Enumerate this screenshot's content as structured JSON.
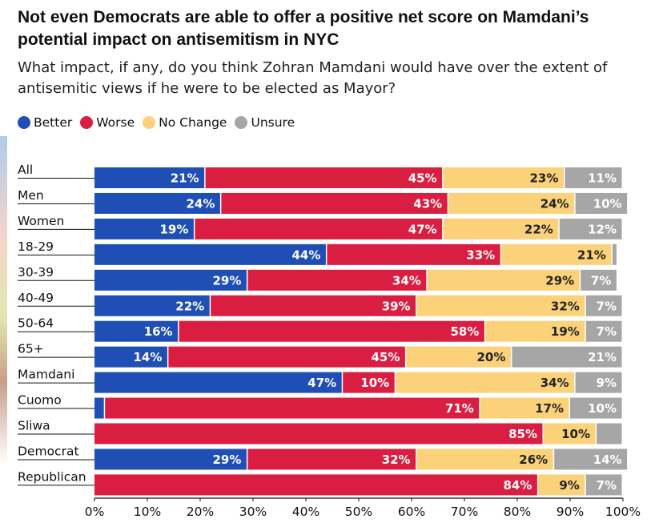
{
  "title": "Not even Democrats are able to offer a positive net score on Mamdani’s potential impact on antisemitism in NYC",
  "subtitle": "What impact, if any, do you think Zohran Mamdani would have over the extent of antisemitic views if he were to be elected as Mayor?",
  "legend": [
    {
      "label": "Better",
      "color": "#1f4fb5"
    },
    {
      "label": "Worse",
      "color": "#d91e41"
    },
    {
      "label": "No Change",
      "color": "#fbd27a"
    },
    {
      "label": "Unsure",
      "color": "#a6a6a6"
    }
  ],
  "chart_data": {
    "type": "bar",
    "orientation": "horizontal-stacked",
    "categories": [
      "All",
      "Men",
      "Women",
      "18-29",
      "30-39",
      "40-49",
      "50-64",
      "65+",
      "Mamdani",
      "Cuomo",
      "Sliwa",
      "Democrat",
      "Republican"
    ],
    "series": [
      {
        "name": "Better",
        "color": "#1f4fb5",
        "values": [
          21,
          24,
          19,
          44,
          29,
          22,
          16,
          14,
          47,
          2,
          0,
          29,
          0
        ]
      },
      {
        "name": "Worse",
        "color": "#d91e41",
        "values": [
          45,
          43,
          47,
          33,
          34,
          39,
          58,
          45,
          10,
          71,
          85,
          32,
          84
        ]
      },
      {
        "name": "No Change",
        "color": "#fbd27a",
        "values": [
          23,
          24,
          22,
          21,
          29,
          32,
          19,
          20,
          34,
          17,
          10,
          26,
          9
        ]
      },
      {
        "name": "Unsure",
        "color": "#a6a6a6",
        "values": [
          11,
          10,
          12,
          1,
          7,
          7,
          7,
          21,
          9,
          10,
          5,
          14,
          7
        ]
      }
    ],
    "labels_shown": [
      [
        "21%",
        "45%",
        "23%",
        "11%"
      ],
      [
        "24%",
        "43%",
        "24%",
        "10%"
      ],
      [
        "19%",
        "47%",
        "22%",
        "12%"
      ],
      [
        "44%",
        "33%",
        "21%",
        ""
      ],
      [
        "29%",
        "34%",
        "29%",
        "7%"
      ],
      [
        "22%",
        "39%",
        "32%",
        "7%"
      ],
      [
        "16%",
        "58%",
        "19%",
        "7%"
      ],
      [
        "14%",
        "45%",
        "20%",
        "21%"
      ],
      [
        "47%",
        "10%",
        "34%",
        "9%"
      ],
      [
        "",
        "71%",
        "17%",
        "10%"
      ],
      [
        "",
        "85%",
        "10%",
        ""
      ],
      [
        "29%",
        "32%",
        "26%",
        "14%"
      ],
      [
        "",
        "84%",
        "9%",
        "7%"
      ]
    ],
    "xlim": [
      0,
      100
    ],
    "xticks": [
      "0%",
      "10%",
      "20%",
      "30%",
      "40%",
      "50%",
      "60%",
      "70%",
      "80%",
      "90%",
      "100%"
    ],
    "grid": false,
    "legend_position": "top-left"
  }
}
